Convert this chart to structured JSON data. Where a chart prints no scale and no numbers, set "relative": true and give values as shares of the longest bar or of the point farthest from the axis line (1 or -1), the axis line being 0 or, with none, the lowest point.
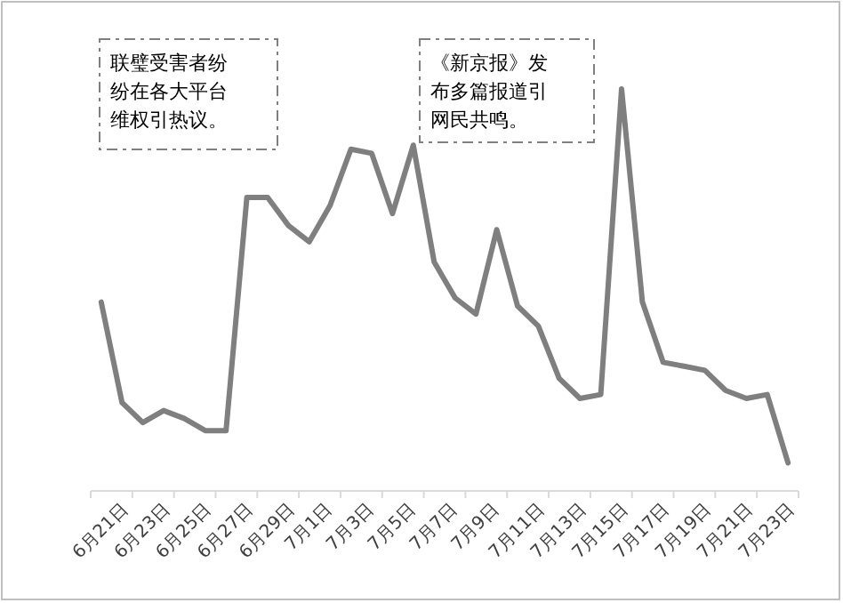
{
  "chart_data": {
    "type": "line",
    "relative": true,
    "categories": [
      "6月21日",
      null,
      "6月23日",
      null,
      "6月25日",
      null,
      "6月27日",
      null,
      "6月29日",
      null,
      "7月1日",
      null,
      "7月3日",
      null,
      "7月5日",
      null,
      "7月7日",
      null,
      "7月9日",
      null,
      "7月11日",
      null,
      "7月13日",
      null,
      "7月15日",
      null,
      "7月17日",
      null,
      "7月19日",
      null,
      "7月21日",
      null,
      "7月23日",
      null
    ],
    "series": [
      {
        "color": "#7f7f7f",
        "values": [
          0.47,
          0.22,
          0.17,
          0.2,
          0.18,
          0.15,
          0.15,
          0.73,
          0.73,
          0.66,
          0.62,
          0.71,
          0.85,
          0.84,
          0.69,
          0.86,
          0.57,
          0.48,
          0.44,
          0.65,
          0.46,
          0.41,
          0.28,
          0.23,
          0.24,
          1,
          0.47,
          0.32,
          0.31,
          0.3,
          0.25,
          0.23,
          0.24,
          0.07
        ]
      }
    ],
    "annotations": [
      "联璧受害者纷纷在各大平台维权引热议。",
      "《新京报》发布多篇报道引网民共鸣。"
    ],
    "grid": false,
    "legend": false,
    "marker": "none",
    "line_style": "solid"
  }
}
